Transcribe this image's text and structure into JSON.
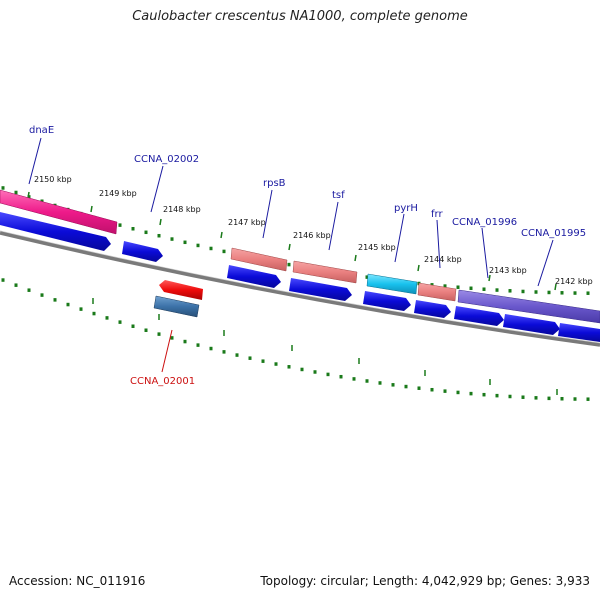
{
  "title": "Caulobacter crescentus NA1000, complete genome",
  "footer": {
    "accession": "Accession: NC_011916",
    "summary": "Topology: circular; Length: 4,042,929 bp; Genes: 3,933"
  },
  "colors": {
    "backbone": "#7a7a7a",
    "tick": "#1a7a1a",
    "cds": "#0b0bd8",
    "forward_label": "#1a1aa0",
    "reverse_label": "#cc1111"
  },
  "scale_labels": [
    "2150 kbp",
    "2149 kbp",
    "2148 kbp",
    "2147 kbp",
    "2146 kbp",
    "2145 kbp",
    "2144 kbp",
    "2143 kbp",
    "2142 kbp"
  ],
  "genes": [
    {
      "name": "dnaE",
      "strand": "forward",
      "label_color": "#1a1aa0"
    },
    {
      "name": "CCNA_02002",
      "strand": "forward",
      "label_color": "#1a1aa0"
    },
    {
      "name": "rpsB",
      "strand": "forward",
      "label_color": "#1a1aa0"
    },
    {
      "name": "tsf",
      "strand": "forward",
      "label_color": "#1a1aa0"
    },
    {
      "name": "pyrH",
      "strand": "forward",
      "label_color": "#1a1aa0"
    },
    {
      "name": "frr",
      "strand": "forward",
      "label_color": "#1a1aa0"
    },
    {
      "name": "CCNA_01996",
      "strand": "forward",
      "label_color": "#1a1aa0"
    },
    {
      "name": "CCNA_01995",
      "strand": "forward",
      "label_color": "#1a1aa0"
    },
    {
      "name": "CCNA_02001",
      "strand": "reverse",
      "label_color": "#cc1111"
    }
  ]
}
